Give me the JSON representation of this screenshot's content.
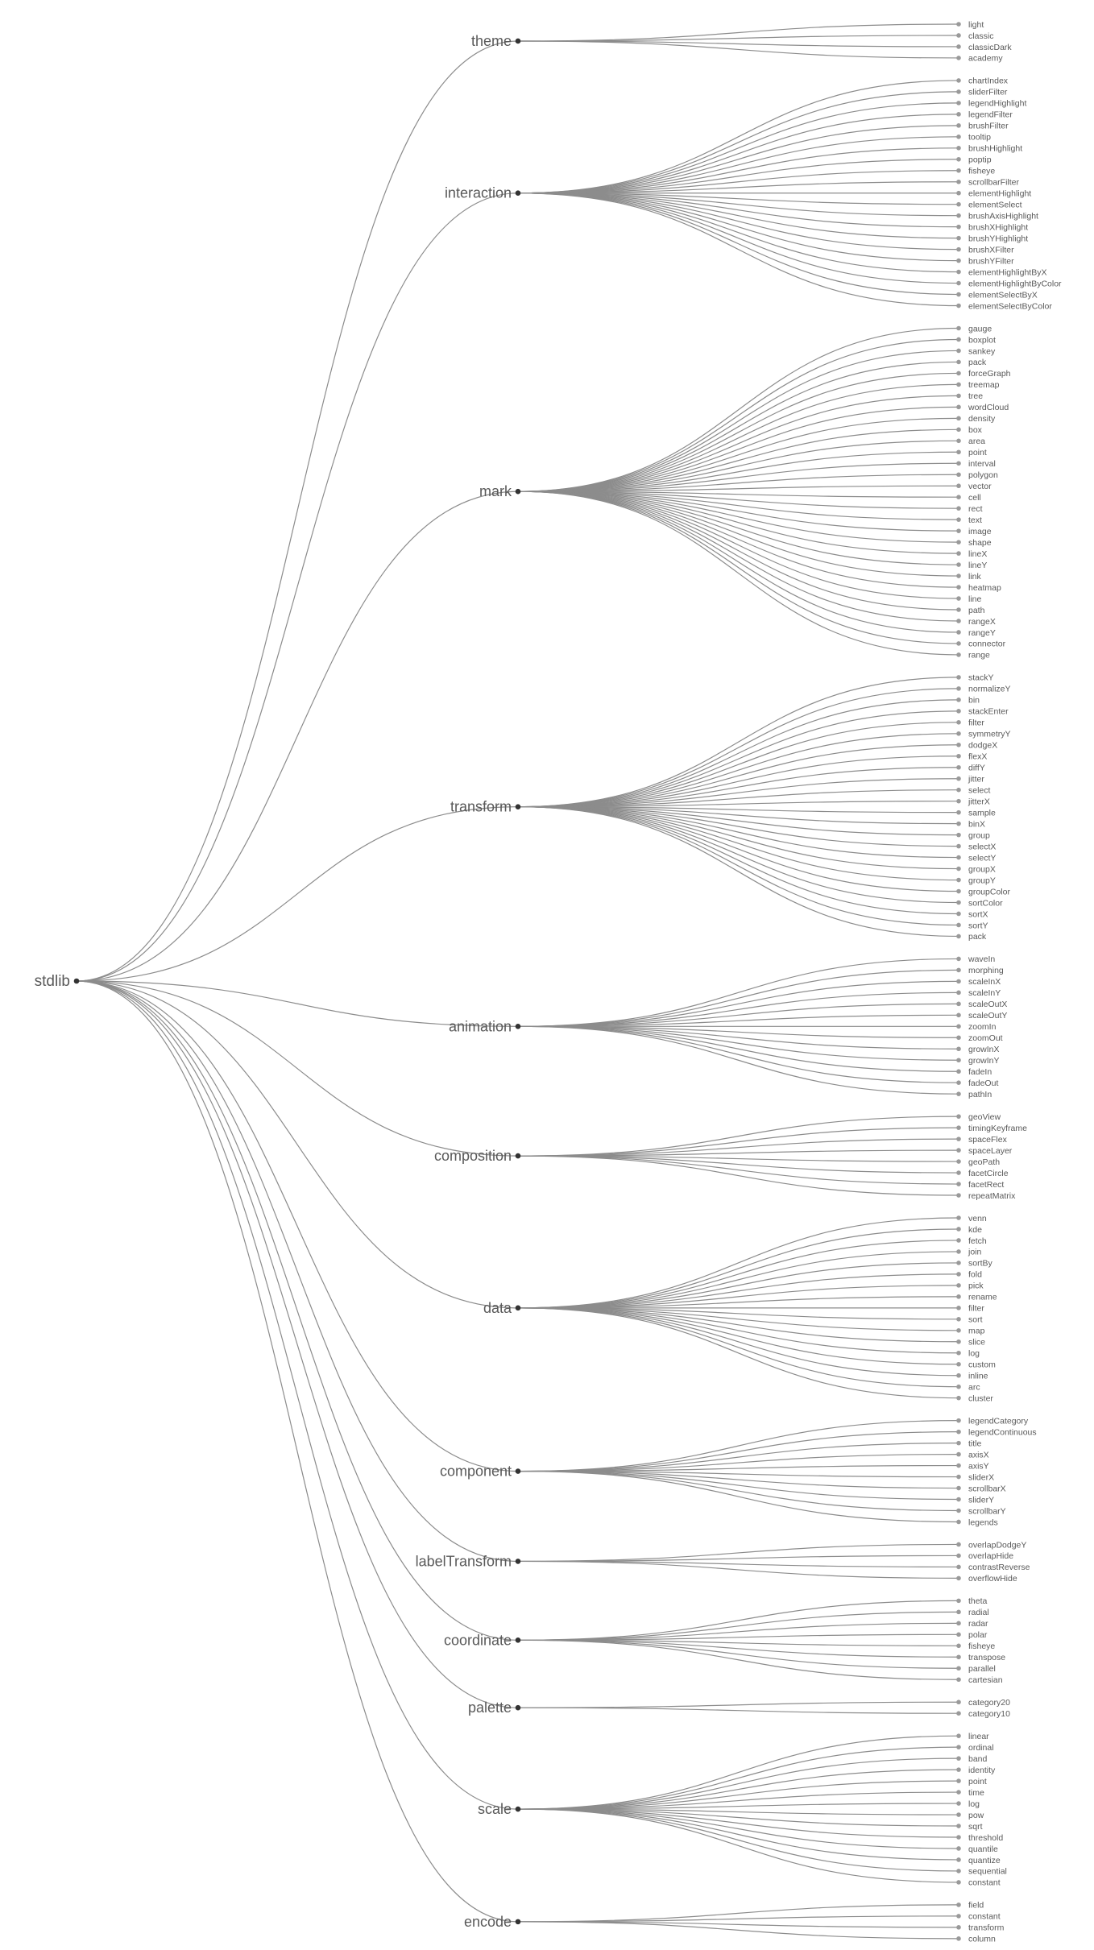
{
  "tree": {
    "root": "stdlib",
    "categories": [
      {
        "name": "theme",
        "children": [
          "light",
          "classic",
          "classicDark",
          "academy"
        ]
      },
      {
        "name": "interaction",
        "children": [
          "chartIndex",
          "sliderFilter",
          "legendHighlight",
          "legendFilter",
          "brushFilter",
          "tooltip",
          "brushHighlight",
          "poptip",
          "fisheye",
          "scrollbarFilter",
          "elementHighlight",
          "elementSelect",
          "brushAxisHighlight",
          "brushXHighlight",
          "brushYHighlight",
          "brushXFilter",
          "brushYFilter",
          "elementHighlightByX",
          "elementHighlightByColor",
          "elementSelectByX",
          "elementSelectByColor"
        ]
      },
      {
        "name": "mark",
        "children": [
          "gauge",
          "boxplot",
          "sankey",
          "pack",
          "forceGraph",
          "treemap",
          "tree",
          "wordCloud",
          "density",
          "box",
          "area",
          "point",
          "interval",
          "polygon",
          "vector",
          "cell",
          "rect",
          "text",
          "image",
          "shape",
          "lineX",
          "lineY",
          "link",
          "heatmap",
          "line",
          "path",
          "rangeX",
          "rangeY",
          "connector",
          "range"
        ]
      },
      {
        "name": "transform",
        "children": [
          "stackY",
          "normalizeY",
          "bin",
          "stackEnter",
          "filter",
          "symmetryY",
          "dodgeX",
          "flexX",
          "diffY",
          "jitter",
          "select",
          "jitterX",
          "sample",
          "binX",
          "group",
          "selectX",
          "selectY",
          "groupX",
          "groupY",
          "groupColor",
          "sortColor",
          "sortX",
          "sortY",
          "pack"
        ]
      },
      {
        "name": "animation",
        "children": [
          "waveIn",
          "morphing",
          "scaleInX",
          "scaleInY",
          "scaleOutX",
          "scaleOutY",
          "zoomIn",
          "zoomOut",
          "growInX",
          "growInY",
          "fadeIn",
          "fadeOut",
          "pathIn"
        ]
      },
      {
        "name": "composition",
        "children": [
          "geoView",
          "timingKeyframe",
          "spaceFlex",
          "spaceLayer",
          "geoPath",
          "facetCircle",
          "facetRect",
          "repeatMatrix"
        ]
      },
      {
        "name": "data",
        "children": [
          "venn",
          "kde",
          "fetch",
          "join",
          "sortBy",
          "fold",
          "pick",
          "rename",
          "filter",
          "sort",
          "map",
          "slice",
          "log",
          "custom",
          "inline",
          "arc",
          "cluster"
        ]
      },
      {
        "name": "component",
        "children": [
          "legendCategory",
          "legendContinuous",
          "title",
          "axisX",
          "axisY",
          "sliderX",
          "scrollbarX",
          "sliderY",
          "scrollbarY",
          "legends"
        ]
      },
      {
        "name": "labelTransform",
        "children": [
          "overlapDodgeY",
          "overlapHide",
          "contrastReverse",
          "overflowHide"
        ]
      },
      {
        "name": "coordinate",
        "children": [
          "theta",
          "radial",
          "radar",
          "polar",
          "fisheye",
          "transpose",
          "parallel",
          "cartesian"
        ]
      },
      {
        "name": "palette",
        "children": [
          "category20",
          "category10"
        ]
      },
      {
        "name": "scale",
        "children": [
          "linear",
          "ordinal",
          "band",
          "identity",
          "point",
          "time",
          "log",
          "pow",
          "sqrt",
          "threshold",
          "quantile",
          "quantize",
          "sequential",
          "constant"
        ]
      },
      {
        "name": "encode",
        "children": [
          "field",
          "constant",
          "transform",
          "column"
        ]
      }
    ]
  }
}
